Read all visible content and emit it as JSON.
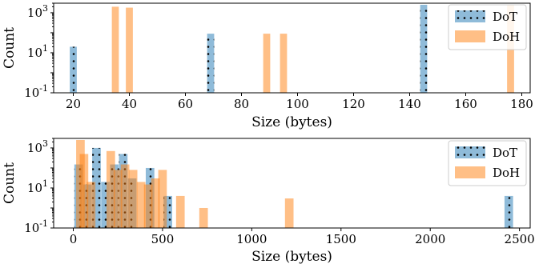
{
  "colors": {
    "dot": "#1f77b4",
    "doh": "#ff7f0e",
    "dot_hatch": "#000000"
  },
  "chart_data": [
    {
      "type": "bar",
      "xlabel": "Size (bytes)",
      "ylabel": "Count",
      "yscale": "log",
      "xlim": [
        13,
        183
      ],
      "ylim": [
        0.1,
        3000
      ],
      "xticks": [
        20,
        40,
        60,
        80,
        100,
        120,
        140,
        160,
        180
      ],
      "yticks": [
        {
          "value": 0.1,
          "label": "10^-1"
        },
        {
          "value": 10,
          "label": "10^1"
        },
        {
          "value": 1000,
          "label": "10^3"
        }
      ],
      "bin_width": 2.5,
      "legend_position": "top-right",
      "series": [
        {
          "name": "DoT",
          "values": [
            [
              20,
              20
            ],
            [
              69,
              90
            ],
            [
              145,
              2500
            ]
          ]
        },
        {
          "name": "DoH",
          "values": [
            [
              35,
              2000
            ],
            [
              40,
              1800
            ],
            [
              89,
              90
            ],
            [
              95,
              90
            ],
            [
              176,
              2500
            ]
          ]
        }
      ]
    },
    {
      "type": "bar",
      "xlabel": "Size (bytes)",
      "ylabel": "Count",
      "yscale": "log",
      "xlim": [
        -110,
        2560
      ],
      "ylim": [
        0.1,
        3000
      ],
      "xticks": [
        0,
        500,
        1000,
        1500,
        2000,
        2500
      ],
      "yticks": [
        {
          "value": 0.1,
          "label": "10^-1"
        },
        {
          "value": 10,
          "label": "10^1"
        },
        {
          "value": 1000,
          "label": "10^3"
        }
      ],
      "bin_width": 48,
      "legend_position": "top-right",
      "series": [
        {
          "name": "DoT",
          "values": [
            [
              30,
              150
            ],
            [
              80,
              15
            ],
            [
              130,
              1000
            ],
            [
              180,
              20
            ],
            [
              230,
              150
            ],
            [
              280,
              500
            ],
            [
              330,
              30
            ],
            [
              430,
              100
            ],
            [
              530,
              4
            ],
            [
              2440,
              4
            ]
          ]
        },
        {
          "name": "DoH",
          "values": [
            [
              40,
              2500
            ],
            [
              60,
              500
            ],
            [
              100,
              20
            ],
            [
              210,
              700
            ],
            [
              250,
              80
            ],
            [
              290,
              150
            ],
            [
              335,
              80
            ],
            [
              380,
              20
            ],
            [
              420,
              15
            ],
            [
              460,
              30
            ],
            [
              500,
              80
            ],
            [
              600,
              4
            ],
            [
              730,
              1
            ],
            [
              1210,
              3
            ]
          ]
        }
      ]
    }
  ]
}
